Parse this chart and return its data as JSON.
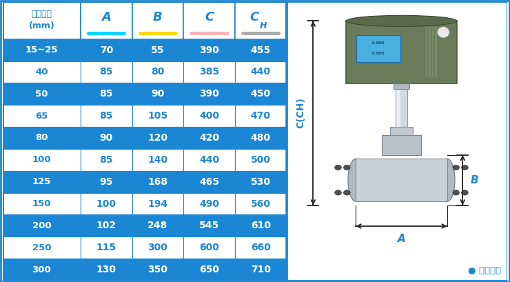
{
  "header_col0": "仪表口径\n(mm)",
  "header_cols": [
    "A",
    "B",
    "C",
    "CH"
  ],
  "col_underline_colors": [
    "#00D4FF",
    "#FFD700",
    "#FFB0B8",
    "#AAAAAA"
  ],
  "rows": [
    [
      "15~25",
      "70",
      "55",
      "390",
      "455"
    ],
    [
      "40",
      "85",
      "80",
      "385",
      "440"
    ],
    [
      "50",
      "85",
      "90",
      "390",
      "450"
    ],
    [
      "65",
      "85",
      "105",
      "400",
      "470"
    ],
    [
      "80",
      "90",
      "120",
      "420",
      "480"
    ],
    [
      "100",
      "85",
      "140",
      "440",
      "500"
    ],
    [
      "125",
      "95",
      "168",
      "465",
      "530"
    ],
    [
      "150",
      "100",
      "194",
      "490",
      "560"
    ],
    [
      "200",
      "102",
      "248",
      "545",
      "610"
    ],
    [
      "250",
      "115",
      "300",
      "600",
      "660"
    ],
    [
      "300",
      "130",
      "350",
      "650",
      "710"
    ]
  ],
  "blue_rows": [
    0,
    2,
    4,
    6,
    8,
    10
  ],
  "blue_bg": "#1B87D4",
  "white_bg": "#FFFFFF",
  "blue_text": "#1B87D4",
  "white_text": "#FFFFFF",
  "border_color": "#1B87D4",
  "diagram_note": "● 常规仪表",
  "diagram_note_color": "#1B87D4",
  "arrow_color": "#222222",
  "label_color": "#1B87D4"
}
